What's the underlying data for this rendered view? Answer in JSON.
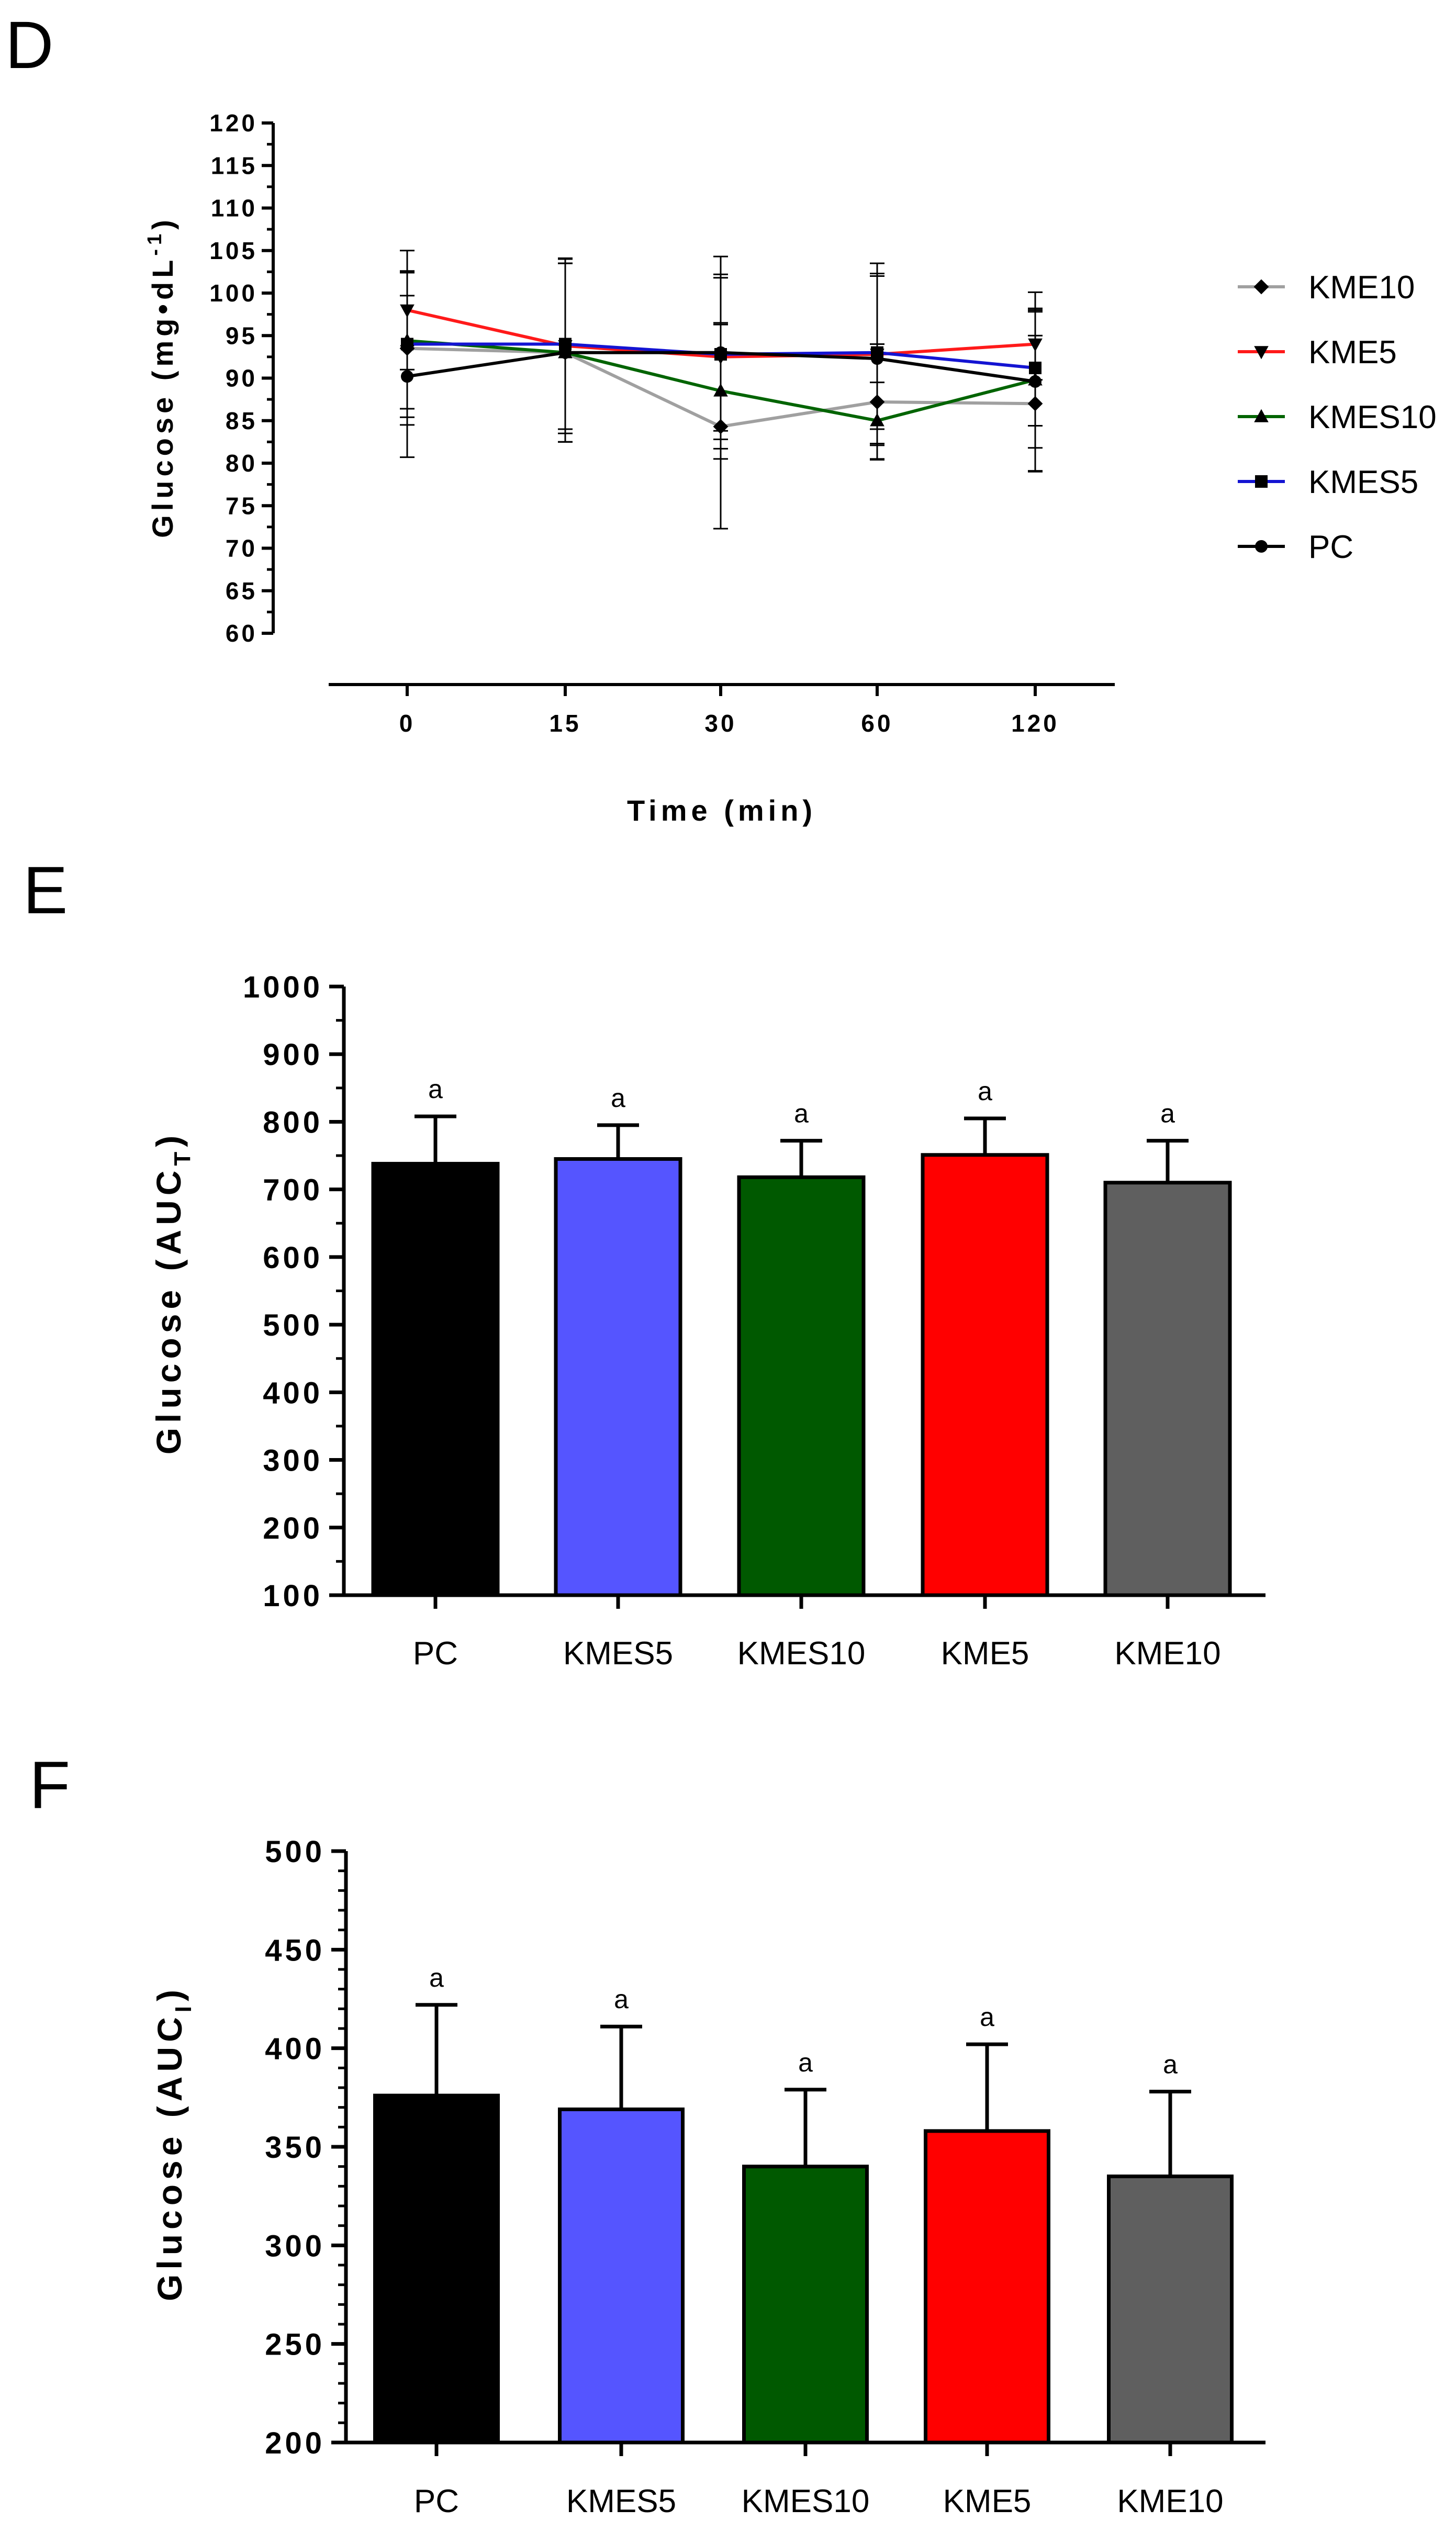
{
  "panels": {
    "d": {
      "letter": "D"
    },
    "e": {
      "letter": "E"
    },
    "f": {
      "letter": "F"
    }
  },
  "chart_data": [
    {
      "id": "D",
      "type": "line",
      "title": "",
      "xlabel": "Time (min)",
      "ylabel": "Glucose (mg•dL⁻¹)",
      "ylabel_parts": {
        "base": "Glucose (mg•dL",
        "sup": "-1",
        "close": ")"
      },
      "categories": [
        "0",
        "15",
        "30",
        "60",
        "120"
      ],
      "ylim": [
        60,
        120
      ],
      "yticks": [
        60,
        65,
        70,
        75,
        80,
        85,
        90,
        95,
        100,
        105,
        110,
        115,
        120
      ],
      "legend_position": "right",
      "series": [
        {
          "name": "KME10",
          "color": "#a0a0a0",
          "marker": "diamond",
          "values": [
            93.5,
            93.0,
            84.3,
            87.2,
            87.0
          ],
          "err": [
            9.0,
            10.5,
            12.0,
            6.8,
            8.0
          ]
        },
        {
          "name": "KME5",
          "color": "#ff1a1a",
          "marker": "triangle-down",
          "values": [
            98.0,
            93.8,
            92.5,
            92.8,
            94.0
          ],
          "err": [
            7.0,
            10.3,
            9.7,
            10.7,
            4.2
          ]
        },
        {
          "name": "KMES10",
          "color": "#006400",
          "marker": "triangle-up",
          "values": [
            94.4,
            93.0,
            88.5,
            85.0,
            89.8
          ],
          "err": [
            8.0,
            10.5,
            8.0,
            4.5,
            8.0
          ]
        },
        {
          "name": "KMES5",
          "color": "#1414d2",
          "marker": "square",
          "values": [
            94.0,
            94.0,
            92.8,
            93.0,
            91.2
          ],
          "err": [
            8.6,
            10.0,
            9.0,
            9.0,
            6.8
          ]
        },
        {
          "name": "PC",
          "color": "#000000",
          "marker": "circle",
          "values": [
            90.2,
            93.0,
            93.0,
            92.3,
            89.6
          ],
          "err": [
            9.5,
            10.5,
            11.3,
            10.0,
            10.5
          ]
        }
      ]
    },
    {
      "id": "E",
      "type": "bar",
      "title": "",
      "xlabel": "",
      "ylabel": "Glucose (AUC_T)",
      "ylabel_parts": {
        "base": "Glucose (AUC",
        "sub": "T",
        "close": ")"
      },
      "categories": [
        "PC",
        "KMES5",
        "KMES10",
        "KME5",
        "KME10"
      ],
      "values": [
        738,
        745,
        718,
        751,
        710
      ],
      "err": [
        70,
        50,
        54,
        54,
        62
      ],
      "labels": [
        "a",
        "a",
        "a",
        "a",
        "a"
      ],
      "colors": [
        "#000000",
        "#5555ff",
        "#005900",
        "#ff0000",
        "#5f5f5f"
      ],
      "ylim": [
        100,
        1000
      ],
      "yticks": [
        100,
        200,
        300,
        400,
        500,
        600,
        700,
        800,
        900,
        1000
      ]
    },
    {
      "id": "F",
      "type": "bar",
      "title": "",
      "xlabel": "",
      "ylabel": "Glucose (AUC_I)",
      "ylabel_parts": {
        "base": "Glucose (AUC",
        "sub": "I",
        "close": ")"
      },
      "categories": [
        "PC",
        "KMES5",
        "KMES10",
        "KME5",
        "KME10"
      ],
      "values": [
        376,
        369,
        340,
        358,
        335
      ],
      "err": [
        46,
        42,
        39,
        44,
        43
      ],
      "labels": [
        "a",
        "a",
        "a",
        "a",
        "a"
      ],
      "colors": [
        "#000000",
        "#5555ff",
        "#005900",
        "#ff0000",
        "#5f5f5f"
      ],
      "ylim": [
        200,
        500
      ],
      "yticks": [
        200,
        250,
        300,
        350,
        400,
        450,
        500
      ]
    }
  ]
}
